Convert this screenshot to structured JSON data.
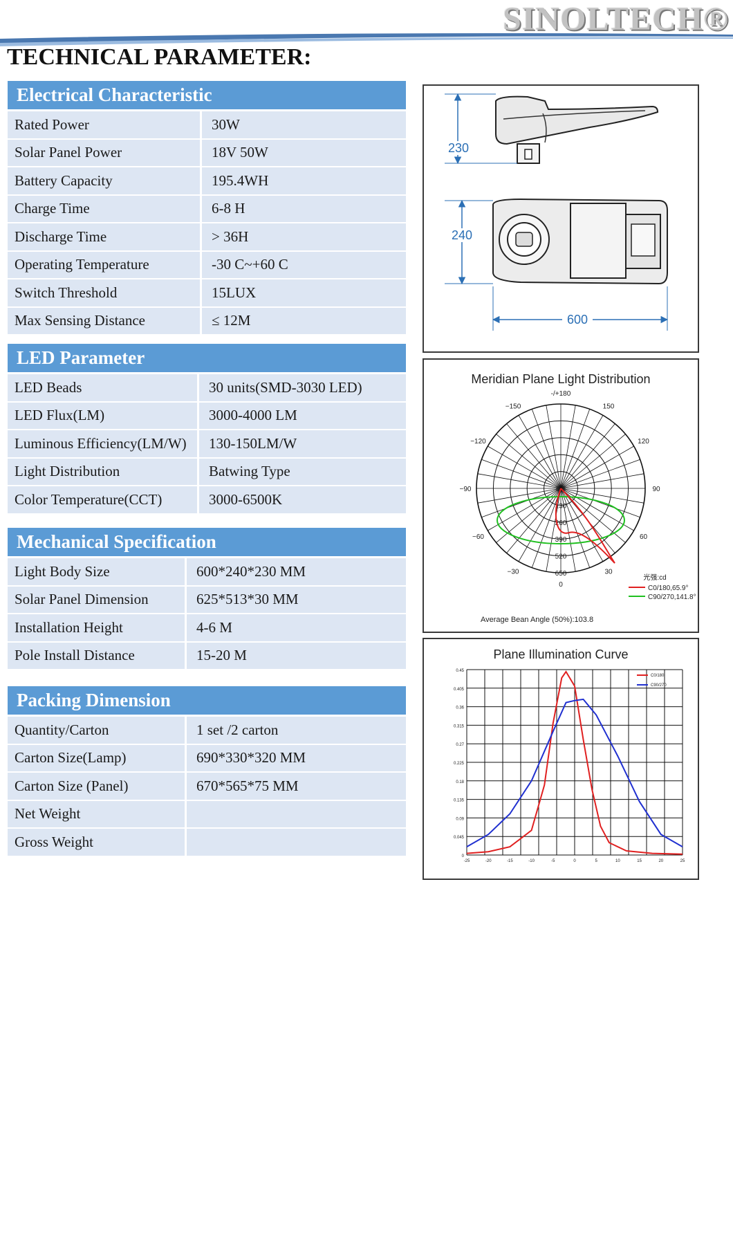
{
  "header": {
    "brand": "SINOLTECH®",
    "title": "TECHNICAL PARAMETER:"
  },
  "sections": [
    {
      "title": "Electrical Characteristic",
      "rows": [
        {
          "label": "Rated Power",
          "value": "30W"
        },
        {
          "label": "Solar Panel Power",
          "value": "18V 50W"
        },
        {
          "label": "Battery Capacity",
          "value": "195.4WH"
        },
        {
          "label": "Charge Time",
          "value": "6-8 H"
        },
        {
          "label": "Discharge Time",
          "value": "> 36H"
        },
        {
          "label": "Operating Temperature",
          "value": "-30 C~+60 C"
        },
        {
          "label": "Switch Threshold",
          "value": "15LUX"
        },
        {
          "label": "Max Sensing Distance",
          "value": "≤ 12M"
        }
      ]
    },
    {
      "title": "LED Parameter",
      "rows": [
        {
          "label": "LED Beads",
          "value": "30 units(SMD-3030 LED)"
        },
        {
          "label": "LED Flux(LM)",
          "value": "3000-4000  LM"
        },
        {
          "label": "Luminous Efficiency(LM/W)",
          "value": "130-150LM/W"
        },
        {
          "label": "Light Distribution",
          "value": "Batwing Type"
        },
        {
          "label": "Color Temperature(CCT)",
          "value": "3000-6500K"
        }
      ]
    },
    {
      "title": "Mechanical Specification",
      "rows": [
        {
          "label": "Light Body Size",
          "value": "600*240*230  MM"
        },
        {
          "label": "Solar Panel Dimension",
          "value": "625*513*30  MM"
        },
        {
          "label": "Installation Height",
          "value": "4-6 M"
        },
        {
          "label": "Pole Install Distance",
          "value": "15-20 M"
        }
      ]
    },
    {
      "title": "Packing Dimension",
      "rows": [
        {
          "label": "Quantity/Carton",
          "value": "1 set /2 carton"
        },
        {
          "label": "Carton Size(Lamp)",
          "value": "690*330*320  MM"
        },
        {
          "label": "Carton Size (Panel)",
          "value": "670*565*75  MM"
        },
        {
          "label": "Net Weight",
          "value": ""
        },
        {
          "label": "Gross Weight",
          "value": ""
        }
      ]
    }
  ],
  "dimension_drawing": {
    "height_label": "230",
    "width_label": "240",
    "length_label": "600"
  },
  "polar_chart": {
    "title": "Meridian Plane Light Distribution",
    "angle_labels": [
      "-/+180",
      "150",
      "120",
      "90",
      "60",
      "30",
      "0",
      "−30",
      "−60",
      "−90",
      "−120",
      "−150"
    ],
    "radial_labels": [
      "0.0",
      "130",
      "260",
      "390",
      "520",
      "650"
    ],
    "unit_label": "光强:cd",
    "legend": [
      {
        "label": "C0/180,65.9°",
        "color": "#e02020"
      },
      {
        "label": "C90/270,141.8°",
        "color": "#20c020"
      }
    ],
    "footer": "Average Bean Angle (50%):103.8"
  },
  "chart_data": {
    "type": "line",
    "title": "Plane Illumination Curve",
    "x": [
      -25,
      -20,
      -15,
      -10,
      -5,
      0,
      5,
      10,
      15,
      20,
      25
    ],
    "x_ticks": [
      "-25",
      "-20",
      "-15",
      "-10",
      "-5",
      "0",
      "5",
      "10",
      "15",
      "20",
      "25"
    ],
    "y_ticks": [
      "0",
      "0.045",
      "0.09",
      "0.135",
      "0.18",
      "0.225",
      "0.27",
      "0.315",
      "0.36",
      "0.405",
      "0.45"
    ],
    "xlim": [
      -25,
      25
    ],
    "ylim": [
      0,
      0.45
    ],
    "grid": true,
    "legend_position": "top-right",
    "series": [
      {
        "name": "C0/180",
        "color": "#e02020",
        "points": [
          [
            -25,
            0.004
          ],
          [
            -20,
            0.008
          ],
          [
            -15,
            0.02
          ],
          [
            -10,
            0.06
          ],
          [
            -7,
            0.17
          ],
          [
            -5,
            0.32
          ],
          [
            -3,
            0.43
          ],
          [
            -2,
            0.445
          ],
          [
            0,
            0.41
          ],
          [
            2,
            0.28
          ],
          [
            4,
            0.16
          ],
          [
            6,
            0.07
          ],
          [
            8,
            0.03
          ],
          [
            12,
            0.01
          ],
          [
            18,
            0.004
          ],
          [
            25,
            0.002
          ]
        ]
      },
      {
        "name": "C90/270",
        "color": "#2030d0",
        "points": [
          [
            -25,
            0.02
          ],
          [
            -20,
            0.05
          ],
          [
            -15,
            0.1
          ],
          [
            -10,
            0.18
          ],
          [
            -5,
            0.3
          ],
          [
            -2,
            0.37
          ],
          [
            0,
            0.375
          ],
          [
            2,
            0.378
          ],
          [
            5,
            0.34
          ],
          [
            10,
            0.24
          ],
          [
            15,
            0.13
          ],
          [
            20,
            0.05
          ],
          [
            25,
            0.02
          ]
        ]
      }
    ]
  }
}
